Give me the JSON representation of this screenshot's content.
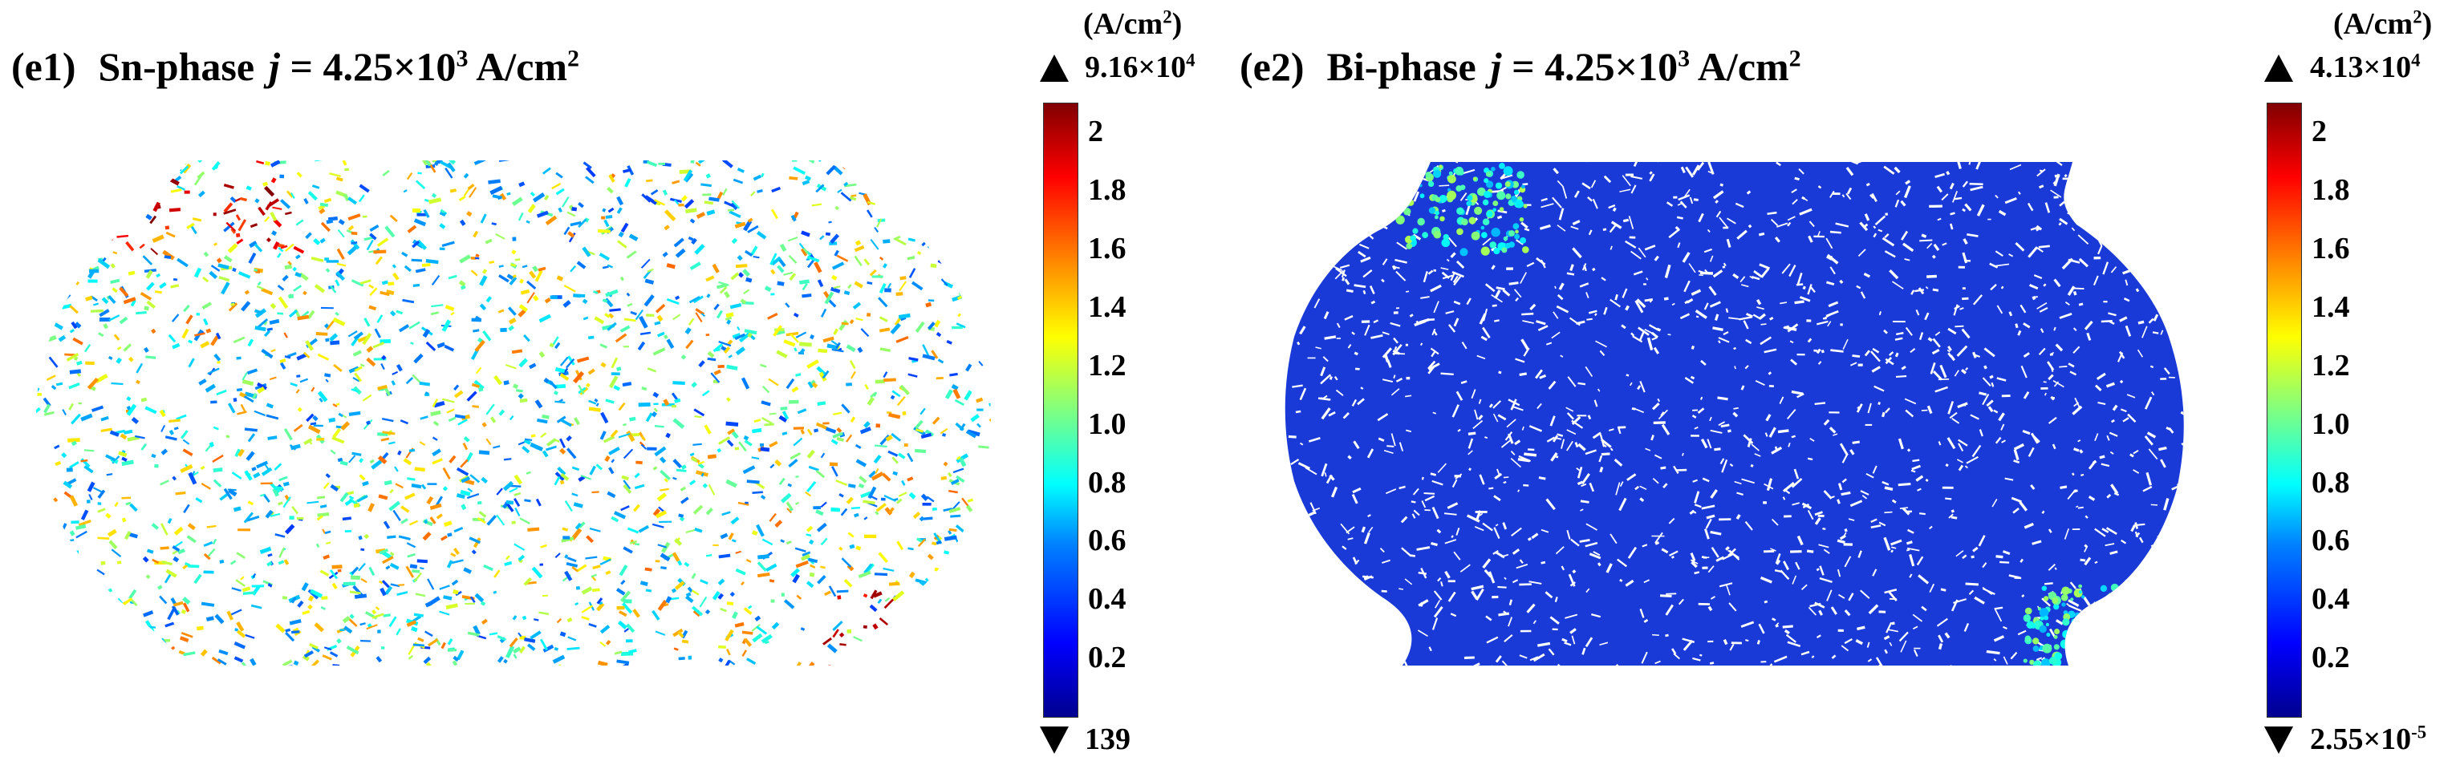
{
  "panels": [
    {
      "id": "e1",
      "label": "(e1)",
      "phase": "Sn-phase",
      "j_symbol": "j",
      "j_eq": "=",
      "j_value": "4.25×10",
      "j_exp": "3",
      "j_unit": "A/cm",
      "j_unit_exp": "2",
      "colorbar": {
        "unit": "(A/cm",
        "unit_exp": "2",
        "unit_close": ")",
        "max_mantissa": "9.16×10",
        "max_exp": "4",
        "min_mantissa": "139",
        "min_exp": "",
        "ticks": [
          "2",
          "1.8",
          "1.6",
          "1.4",
          "1.2",
          "1.0",
          "0.8",
          "0.6",
          "0.4",
          "0.2"
        ]
      }
    },
    {
      "id": "e2",
      "label": "(e2)",
      "phase": "Bi-phase",
      "j_symbol": "j",
      "j_eq": "=",
      "j_value": "4.25×10",
      "j_exp": "3",
      "j_unit": "A/cm",
      "j_unit_exp": "2",
      "colorbar": {
        "unit": "(A/cm",
        "unit_exp": "2",
        "unit_close": ")",
        "max_mantissa": "4.13×10",
        "max_exp": "4",
        "min_mantissa": "2.55×10",
        "min_exp": "-5",
        "ticks": [
          "2",
          "1.8",
          "1.6",
          "1.4",
          "1.2",
          "1.0",
          "0.8",
          "0.6",
          "0.4",
          "0.2"
        ]
      }
    }
  ],
  "chart_data": [
    {
      "type": "heatmap",
      "title": "Sn-phase",
      "colormap": "jet",
      "colorbar_ticks": [
        2,
        1.8,
        1.6,
        1.4,
        1.2,
        1.0,
        0.8,
        0.6,
        0.4,
        0.2
      ],
      "colorbar_max": "9.16×10^4",
      "colorbar_min": "139",
      "colorbar_unit": "(A/cm²)",
      "dominant_level": 0.5
    },
    {
      "type": "heatmap",
      "title": "Bi-phase",
      "colormap": "jet",
      "colorbar_ticks": [
        2,
        1.8,
        1.6,
        1.4,
        1.2,
        1.0,
        0.8,
        0.6,
        0.4,
        0.2
      ],
      "colorbar_max": "4.13×10^4",
      "colorbar_min": "2.55×10^-5",
      "colorbar_unit": "(A/cm²)",
      "dominant_level": 0.2
    }
  ]
}
